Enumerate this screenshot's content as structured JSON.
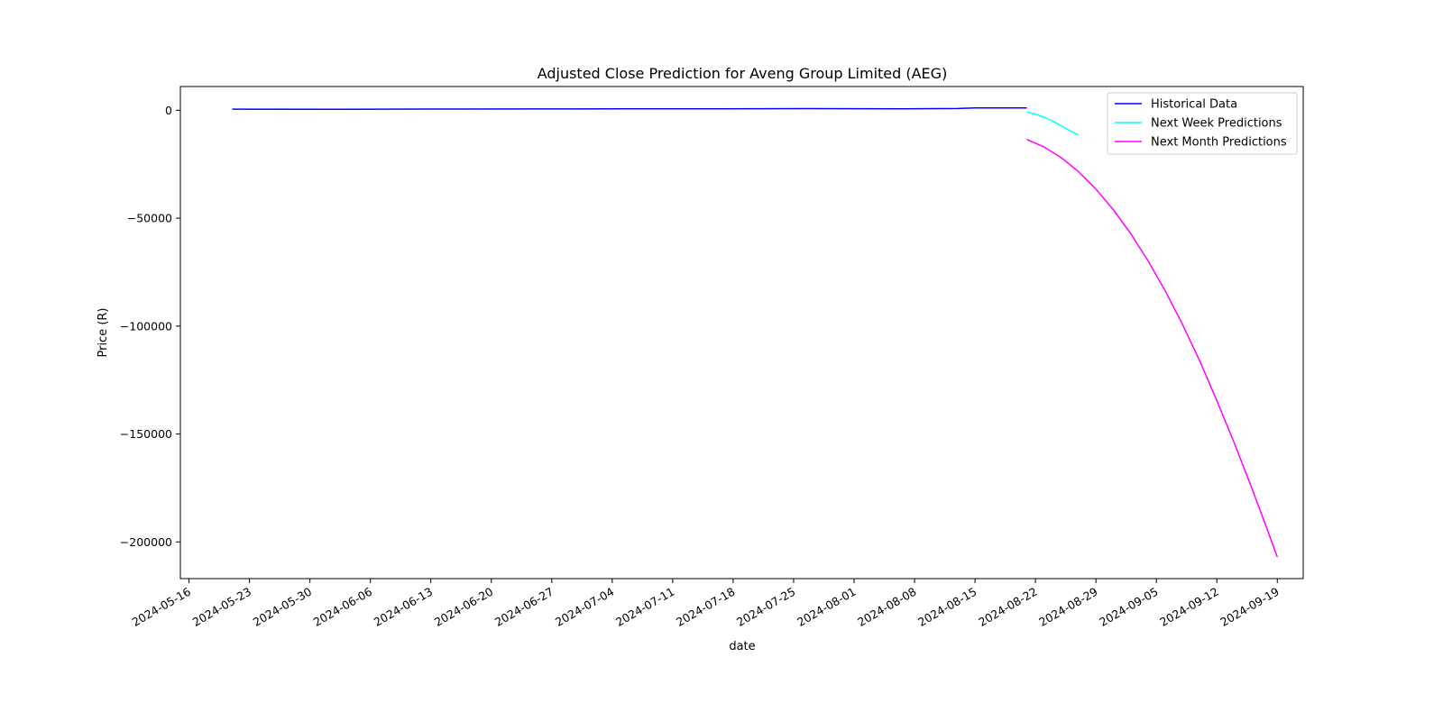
{
  "chart_data": {
    "type": "line",
    "title": "Adjusted Close Prediction for Aveng Group Limited (AEG)",
    "xlabel": "date",
    "ylabel": "Price (R)",
    "xlim": [
      "2024-05-15",
      "2024-09-22"
    ],
    "ylim": [
      -217000,
      11000
    ],
    "x_ticks": [
      "2024-05-16",
      "2024-05-23",
      "2024-05-30",
      "2024-06-06",
      "2024-06-13",
      "2024-06-20",
      "2024-06-27",
      "2024-07-04",
      "2024-07-11",
      "2024-07-18",
      "2024-07-25",
      "2024-08-01",
      "2024-08-08",
      "2024-08-15",
      "2024-08-22",
      "2024-08-29",
      "2024-09-05",
      "2024-09-12",
      "2024-09-19"
    ],
    "y_ticks": [
      0,
      -50000,
      -100000,
      -150000,
      -200000
    ],
    "y_tick_labels": [
      "0",
      "−50000",
      "−100000",
      "−150000",
      "−200000"
    ],
    "grid": false,
    "legend_position": "top-right",
    "series": [
      {
        "name": "Historical Data",
        "color": "#0000ff",
        "x": [
          "2024-05-21",
          "2024-06-01",
          "2024-06-12",
          "2024-06-24",
          "2024-07-05",
          "2024-07-16",
          "2024-07-27",
          "2024-08-07",
          "2024-08-13",
          "2024-08-15",
          "2024-08-21"
        ],
        "y": [
          500,
          450,
          550,
          600,
          650,
          700,
          750,
          700,
          800,
          1100,
          1100
        ]
      },
      {
        "name": "Next Week Predictions",
        "color": "#00ffff",
        "x": [
          "2024-08-21",
          "2024-08-22",
          "2024-08-23",
          "2024-08-24",
          "2024-08-25",
          "2024-08-26",
          "2024-08-27"
        ],
        "y": [
          -800,
          -1800,
          -3200,
          -5000,
          -7200,
          -9500,
          -11500
        ]
      },
      {
        "name": "Next Month Predictions",
        "color": "#ff00ff",
        "x": [
          "2024-08-21",
          "2024-08-23",
          "2024-08-25",
          "2024-08-27",
          "2024-08-29",
          "2024-08-31",
          "2024-09-02",
          "2024-09-04",
          "2024-09-06",
          "2024-09-08",
          "2024-09-10",
          "2024-09-12",
          "2024-09-14",
          "2024-09-16",
          "2024-09-18",
          "2024-09-19"
        ],
        "y": [
          -13500,
          -17000,
          -22000,
          -28500,
          -36500,
          -46000,
          -57000,
          -69500,
          -83500,
          -99000,
          -116000,
          -134500,
          -154000,
          -174500,
          -196000,
          -207000
        ]
      }
    ]
  }
}
